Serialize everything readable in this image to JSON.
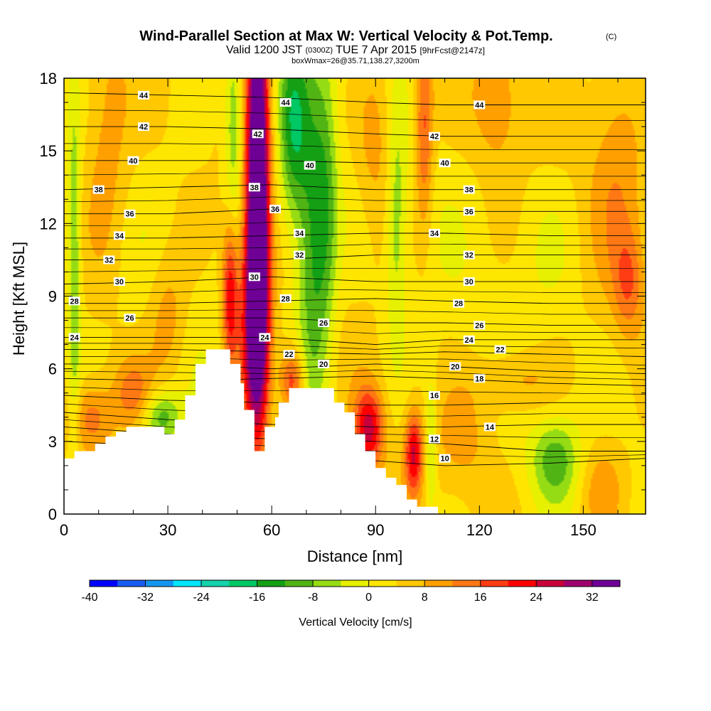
{
  "chart_data": {
    "type": "heatmap",
    "title": "Wind-Parallel Section at Max W: Vertical Velocity & Pot.Temp.",
    "title_mark": "(C)",
    "subtitle_parts": [
      "Valid 1200 JST",
      "(0300Z)",
      "TUE 7 Apr 2015",
      "[9hrFcst@2147z]"
    ],
    "subtitle2": "boxWmax=26@35.71,138.27,3200m",
    "xlabel": "Distance [nm]",
    "ylabel": "Height [Kft MSL]",
    "xlim": [
      0,
      168
    ],
    "ylim": [
      0,
      18
    ],
    "x_ticks": [
      "0",
      "30",
      "60",
      "90",
      "120",
      "150"
    ],
    "x_tick_values": [
      0,
      30,
      60,
      90,
      120,
      150
    ],
    "y_ticks": [
      "0",
      "3",
      "6",
      "9",
      "12",
      "15",
      "18"
    ],
    "y_tick_values": [
      0,
      3,
      6,
      9,
      12,
      15,
      18
    ],
    "colorbar": {
      "label": "Vertical Velocity [cm/s]",
      "ticks": [
        "-40",
        "-32",
        "-24",
        "-16",
        "-8",
        "0",
        "8",
        "16",
        "24",
        "32"
      ],
      "tick_values": [
        -40,
        -32,
        -24,
        -16,
        -8,
        0,
        8,
        16,
        24,
        32
      ],
      "min": -40,
      "max": 36,
      "colors": [
        "#0000ff",
        "#1a5cf0",
        "#1496f0",
        "#00e6ff",
        "#14d2aa",
        "#00c864",
        "#14a014",
        "#50b414",
        "#96dc14",
        "#e6f000",
        "#ffe600",
        "#ffc800",
        "#ffa000",
        "#ff7814",
        "#ff3c14",
        "#ff0000",
        "#c8003c",
        "#a0006e",
        "#6e0096"
      ]
    },
    "terrain_profile": [
      {
        "x": 0,
        "h": 2.3
      },
      {
        "x": 3,
        "h": 2.6
      },
      {
        "x": 9,
        "h": 2.9
      },
      {
        "x": 12,
        "h": 3.2
      },
      {
        "x": 15,
        "h": 3.4
      },
      {
        "x": 18,
        "h": 3.6
      },
      {
        "x": 24,
        "h": 3.6
      },
      {
        "x": 29,
        "h": 3.3
      },
      {
        "x": 32,
        "h": 3.9
      },
      {
        "x": 35,
        "h": 4.9
      },
      {
        "x": 38,
        "h": 6.2
      },
      {
        "x": 41,
        "h": 6.8
      },
      {
        "x": 46,
        "h": 6.8
      },
      {
        "x": 48,
        "h": 6.2
      },
      {
        "x": 51,
        "h": 5.4
      },
      {
        "x": 52,
        "h": 4.3
      },
      {
        "x": 55,
        "h": 2.6
      },
      {
        "x": 58,
        "h": 3.6
      },
      {
        "x": 61,
        "h": 4.0
      },
      {
        "x": 62,
        "h": 4.6
      },
      {
        "x": 65,
        "h": 5.2
      },
      {
        "x": 75,
        "h": 5.2
      },
      {
        "x": 78,
        "h": 4.6
      },
      {
        "x": 81,
        "h": 4.2
      },
      {
        "x": 84,
        "h": 3.3
      },
      {
        "x": 87,
        "h": 2.6
      },
      {
        "x": 90,
        "h": 1.9
      },
      {
        "x": 93,
        "h": 1.5
      },
      {
        "x": 96,
        "h": 1.2
      },
      {
        "x": 99,
        "h": 0.6
      },
      {
        "x": 102,
        "h": 0.3
      },
      {
        "x": 105,
        "h": 0.3
      },
      {
        "x": 108,
        "h": 0.0
      },
      {
        "x": 168,
        "h": 0.0
      }
    ],
    "w_features": [
      {
        "x": 56,
        "h": 14.0,
        "sx": 2.2,
        "sy": 6.5,
        "w": 40
      },
      {
        "x": 55,
        "h": 8.0,
        "sx": 3.0,
        "sy": 3.5,
        "w": 24
      },
      {
        "x": 48,
        "h": 9.0,
        "sx": 1.6,
        "sy": 2.2,
        "w": 20
      },
      {
        "x": 72,
        "h": 11.0,
        "sx": 3.5,
        "sy": 5.0,
        "w": -16
      },
      {
        "x": 66,
        "h": 16.0,
        "sx": 3.0,
        "sy": 3.0,
        "w": -16
      },
      {
        "x": 76,
        "h": 13.0,
        "sx": 2.5,
        "sy": 4.0,
        "w": -8
      },
      {
        "x": 49,
        "h": 16.0,
        "sx": 1.8,
        "sy": 3.0,
        "w": -12
      },
      {
        "x": 3,
        "h": 10.0,
        "sx": 1.3,
        "sy": 5.0,
        "w": -12
      },
      {
        "x": 96,
        "h": 12.0,
        "sx": 2.0,
        "sy": 3.5,
        "w": -10
      },
      {
        "x": 106,
        "h": 3.0,
        "sx": 1.2,
        "sy": 2.0,
        "w": -10
      },
      {
        "x": 28,
        "h": 4.0,
        "sx": 4.0,
        "sy": 0.8,
        "w": -14
      },
      {
        "x": 142,
        "h": 2.2,
        "sx": 5.0,
        "sy": 1.2,
        "w": -12
      },
      {
        "x": 88,
        "h": 3.5,
        "sx": 3.0,
        "sy": 1.2,
        "w": 22
      },
      {
        "x": 101,
        "h": 2.5,
        "sx": 1.8,
        "sy": 1.2,
        "w": 20
      },
      {
        "x": 66,
        "h": 5.5,
        "sx": 2.5,
        "sy": 1.0,
        "w": 18
      },
      {
        "x": 104,
        "h": 16.0,
        "sx": 1.8,
        "sy": 3.0,
        "w": 14
      },
      {
        "x": 12,
        "h": 15.0,
        "sx": 5.0,
        "sy": 4.0,
        "w": 8
      },
      {
        "x": 90,
        "h": 15.5,
        "sx": 4.0,
        "sy": 2.5,
        "w": 8
      },
      {
        "x": 160,
        "h": 15.0,
        "sx": 6.0,
        "sy": 4.0,
        "w": 8
      },
      {
        "x": 125,
        "h": 17.0,
        "sx": 5.0,
        "sy": 2.0,
        "w": 8
      },
      {
        "x": 30,
        "h": 8.0,
        "sx": 4.0,
        "sy": 2.0,
        "w": 8
      },
      {
        "x": 20,
        "h": 5.0,
        "sx": 4.0,
        "sy": 1.0,
        "w": 10
      },
      {
        "x": 8,
        "h": 4.0,
        "sx": 4.0,
        "sy": 1.0,
        "w": 10
      },
      {
        "x": 130,
        "h": 5.5,
        "sx": 8.0,
        "sy": 1.0,
        "w": 8
      },
      {
        "x": 163,
        "h": 9.5,
        "sx": 3.0,
        "sy": 1.5,
        "w": 10
      },
      {
        "x": 155,
        "h": 1.0,
        "sx": 5.0,
        "sy": 1.5,
        "w": 8
      },
      {
        "x": 115,
        "h": 3.0,
        "sx": 6.0,
        "sy": 1.5,
        "w": 6
      },
      {
        "x": 140,
        "h": 11.0,
        "sx": 6.0,
        "sy": 2.0,
        "w": -3
      }
    ],
    "isentropes": [
      {
        "label": "10",
        "h": [
          3.0,
          2.8,
          2.5,
          2.2,
          2.0,
          2.1,
          2.3
        ]
      },
      {
        "label": "12",
        "h": [
          3.6,
          3.3,
          3.1,
          3.0,
          2.9,
          2.6,
          2.6
        ]
      },
      {
        "label": "14",
        "h": [
          4.2,
          3.9,
          3.7,
          3.6,
          3.6,
          3.7,
          3.7
        ]
      },
      {
        "label": "16",
        "h": [
          4.9,
          4.7,
          4.6,
          4.5,
          4.5,
          4.6,
          4.6
        ]
      },
      {
        "label": "18",
        "h": [
          5.6,
          5.5,
          5.6,
          5.7,
          5.6,
          5.4,
          5.3
        ]
      },
      {
        "label": "20",
        "h": [
          6.2,
          6.2,
          6.0,
          6.2,
          6.1,
          5.9,
          5.8
        ]
      },
      {
        "label": "22",
        "h": [
          6.8,
          6.8,
          6.7,
          6.6,
          6.7,
          6.6,
          6.5
        ]
      },
      {
        "label": "24",
        "h": [
          7.3,
          7.3,
          7.3,
          7.0,
          7.2,
          7.2,
          7.2
        ]
      },
      {
        "label": "26",
        "h": [
          8.1,
          8.1,
          8.1,
          7.9,
          7.9,
          7.8,
          7.8
        ]
      },
      {
        "label": "28",
        "h": [
          8.7,
          8.7,
          8.8,
          8.9,
          8.8,
          8.7,
          8.7
        ]
      },
      {
        "label": "30",
        "h": [
          9.5,
          9.6,
          9.8,
          9.6,
          9.6,
          9.6,
          9.6
        ]
      },
      {
        "label": "32",
        "h": [
          10.5,
          10.5,
          10.5,
          10.7,
          10.7,
          10.7,
          10.7
        ]
      },
      {
        "label": "34",
        "h": [
          11.4,
          11.4,
          11.5,
          11.6,
          11.6,
          11.5,
          11.5
        ]
      },
      {
        "label": "36",
        "h": [
          12.4,
          12.4,
          12.6,
          12.5,
          12.5,
          12.5,
          12.5
        ]
      },
      {
        "label": "38",
        "h": [
          13.4,
          13.5,
          13.6,
          13.4,
          13.4,
          13.4,
          13.4
        ]
      },
      {
        "label": "40",
        "h": [
          14.6,
          14.6,
          14.6,
          14.5,
          14.5,
          14.5,
          14.5
        ]
      },
      {
        "label": "42",
        "h": [
          16.0,
          16.0,
          15.9,
          15.7,
          15.6,
          15.6,
          15.6
        ]
      },
      {
        "label": "44",
        "h": [
          17.4,
          17.3,
          17.2,
          17.0,
          16.9,
          16.9,
          16.9
        ]
      }
    ],
    "isentrope_x": [
      0,
      30,
      60,
      90,
      110,
      140,
      168
    ],
    "contour_labels": [
      {
        "text": "44",
        "x": 23,
        "h": 17.3
      },
      {
        "text": "44",
        "x": 64,
        "h": 17.0
      },
      {
        "text": "44",
        "x": 120,
        "h": 16.9
      },
      {
        "text": "42",
        "x": 23,
        "h": 16.0
      },
      {
        "text": "42",
        "x": 56,
        "h": 15.7
      },
      {
        "text": "42",
        "x": 107,
        "h": 15.6
      },
      {
        "text": "40",
        "x": 20,
        "h": 14.6
      },
      {
        "text": "40",
        "x": 71,
        "h": 14.4
      },
      {
        "text": "40",
        "x": 110,
        "h": 14.5
      },
      {
        "text": "38",
        "x": 10,
        "h": 13.4
      },
      {
        "text": "38",
        "x": 55,
        "h": 13.5
      },
      {
        "text": "38",
        "x": 117,
        "h": 13.4
      },
      {
        "text": "36",
        "x": 19,
        "h": 12.4
      },
      {
        "text": "36",
        "x": 61,
        "h": 12.6
      },
      {
        "text": "36",
        "x": 117,
        "h": 12.5
      },
      {
        "text": "34",
        "x": 16,
        "h": 11.5
      },
      {
        "text": "34",
        "x": 68,
        "h": 11.6
      },
      {
        "text": "34",
        "x": 107,
        "h": 11.6
      },
      {
        "text": "32",
        "x": 13,
        "h": 10.5
      },
      {
        "text": "32",
        "x": 68,
        "h": 10.7
      },
      {
        "text": "32",
        "x": 117,
        "h": 10.7
      },
      {
        "text": "30",
        "x": 16,
        "h": 9.6
      },
      {
        "text": "30",
        "x": 55,
        "h": 9.8
      },
      {
        "text": "30",
        "x": 117,
        "h": 9.6
      },
      {
        "text": "28",
        "x": 3,
        "h": 8.8
      },
      {
        "text": "28",
        "x": 64,
        "h": 8.9
      },
      {
        "text": "28",
        "x": 114,
        "h": 8.7
      },
      {
        "text": "26",
        "x": 19,
        "h": 8.1
      },
      {
        "text": "26",
        "x": 75,
        "h": 7.9
      },
      {
        "text": "26",
        "x": 120,
        "h": 7.8
      },
      {
        "text": "24",
        "x": 3,
        "h": 7.3
      },
      {
        "text": "24",
        "x": 58,
        "h": 7.3
      },
      {
        "text": "24",
        "x": 117,
        "h": 7.2
      },
      {
        "text": "22",
        "x": 65,
        "h": 6.6
      },
      {
        "text": "22",
        "x": 126,
        "h": 6.8
      },
      {
        "text": "20",
        "x": 75,
        "h": 6.2
      },
      {
        "text": "20",
        "x": 113,
        "h": 6.1
      },
      {
        "text": "18",
        "x": 120,
        "h": 5.6
      },
      {
        "text": "16",
        "x": 107,
        "h": 4.9
      },
      {
        "text": "14",
        "x": 123,
        "h": 3.6
      },
      {
        "text": "12",
        "x": 107,
        "h": 3.1
      },
      {
        "text": "10",
        "x": 110,
        "h": 2.3
      }
    ]
  }
}
